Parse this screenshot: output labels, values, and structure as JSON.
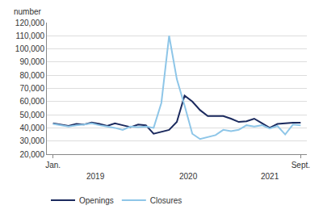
{
  "chart_data": {
    "type": "line",
    "y_label": "number",
    "categories": [
      "Jan.",
      null,
      null,
      null,
      null,
      null,
      null,
      null,
      null,
      null,
      null,
      null,
      null,
      null,
      null,
      null,
      null,
      null,
      null,
      null,
      null,
      null,
      null,
      null,
      null,
      null,
      null,
      null,
      null,
      null,
      null,
      null,
      "Sept."
    ],
    "annotations": [
      "2019",
      "2020",
      "2021"
    ],
    "series": [
      {
        "name": "Openings",
        "color": "#1b2a5e",
        "values": [
          43500,
          42500,
          41500,
          43000,
          42500,
          44000,
          43000,
          41500,
          43500,
          42000,
          40500,
          42500,
          42000,
          35500,
          37000,
          38500,
          44500,
          64500,
          60000,
          53500,
          49000,
          49000,
          49000,
          47000,
          44500,
          45000,
          47000,
          43500,
          40000,
          43000,
          43500,
          44000,
          44000
        ]
      },
      {
        "name": "Closures",
        "color": "#8ec6e8",
        "values": [
          43000,
          42000,
          41000,
          42000,
          42500,
          43500,
          42000,
          41000,
          40000,
          38500,
          41000,
          40500,
          41000,
          40000,
          59000,
          110000,
          77000,
          57000,
          35500,
          31500,
          33000,
          34500,
          38500,
          37500,
          38500,
          42000,
          41000,
          42000,
          39500,
          41500,
          35000,
          42500,
          42000
        ]
      }
    ],
    "ylim": [
      20000,
      120000
    ],
    "yticks": [
      {
        "value": 20000,
        "label": "20,000"
      },
      {
        "value": 30000,
        "label": "30,000"
      },
      {
        "value": 40000,
        "label": "40,000"
      },
      {
        "value": 50000,
        "label": "50,000"
      },
      {
        "value": 60000,
        "label": "60,000"
      },
      {
        "value": 70000,
        "label": "70,000"
      },
      {
        "value": 80000,
        "label": "80,000"
      },
      {
        "value": 90000,
        "label": "90,000"
      },
      {
        "value": 100000,
        "label": "100,000"
      },
      {
        "value": 110000,
        "label": "110,000"
      },
      {
        "value": 120000,
        "label": "120,000"
      }
    ],
    "grid": true,
    "legend": "bottom"
  }
}
